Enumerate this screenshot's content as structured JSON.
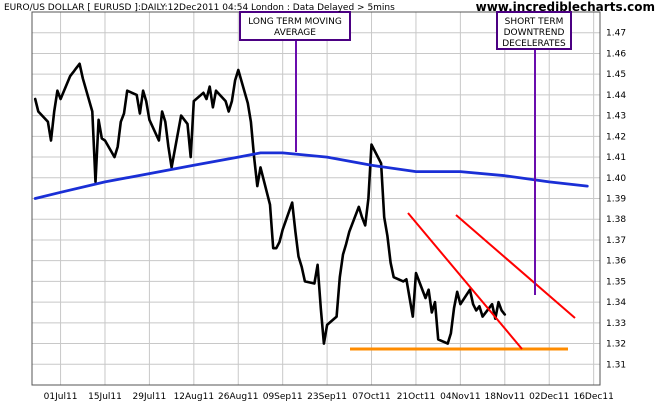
{
  "header": {
    "title": "EURO/US DOLLAR [ EURUSD ]:DAILY:12Dec2011 04:54 London : Data Delayed > 5mins",
    "brand": "www.incrediblecharts.com"
  },
  "annotations": {
    "long_term": [
      "LONG TERM MOVING",
      "AVERAGE"
    ],
    "short_term": [
      "SHORT TERM",
      "DOWNTREND",
      "DECELERATES"
    ]
  },
  "colors": {
    "price": "#000000",
    "moving_average": "#1a2fd6",
    "trendlines": "#ff0000",
    "support": "#ff8c00",
    "annotation_border": "#4b0082",
    "annotation_line": "#6a0dad",
    "grid": "#c8c8c8",
    "brand_text": "#000000"
  },
  "chart_data": {
    "type": "line",
    "x_type": "date",
    "y_axis_side": "right",
    "ylim": [
      1.3,
      1.48
    ],
    "y_ticks": [
      "1.31",
      "1.32",
      "1.33",
      "1.34",
      "1.35",
      "1.36",
      "1.37",
      "1.38",
      "1.39",
      "1.40",
      "1.41",
      "1.42",
      "1.43",
      "1.44",
      "1.45",
      "1.46",
      "1.47"
    ],
    "xlim": [
      "2011-06-22",
      "2011-12-18"
    ],
    "x_ticks": [
      {
        "label": "01Jul11",
        "date": "2011-07-01"
      },
      {
        "label": "15Jul11",
        "date": "2011-07-15"
      },
      {
        "label": "29Jul11",
        "date": "2011-07-29"
      },
      {
        "label": "12Aug11",
        "date": "2011-08-12"
      },
      {
        "label": "26Aug11",
        "date": "2011-08-26"
      },
      {
        "label": "09Sep11",
        "date": "2011-09-09"
      },
      {
        "label": "23Sep11",
        "date": "2011-09-23"
      },
      {
        "label": "07Oct11",
        "date": "2011-10-07"
      },
      {
        "label": "21Oct11",
        "date": "2011-10-21"
      },
      {
        "label": "04Nov11",
        "date": "2011-11-04"
      },
      {
        "label": "18Nov11",
        "date": "2011-11-18"
      },
      {
        "label": "02Dec11",
        "date": "2011-12-02"
      },
      {
        "label": "16Dec11",
        "date": "2011-12-16"
      }
    ],
    "grid": true,
    "series": [
      {
        "style": "price",
        "points": [
          [
            "2011-06-23",
            1.438
          ],
          [
            "2011-06-24",
            1.432
          ],
          [
            "2011-06-27",
            1.427
          ],
          [
            "2011-06-28",
            1.418
          ],
          [
            "2011-06-29",
            1.432
          ],
          [
            "2011-06-30",
            1.442
          ],
          [
            "2011-07-01",
            1.438
          ],
          [
            "2011-07-04",
            1.449
          ],
          [
            "2011-07-05",
            1.451
          ],
          [
            "2011-07-06",
            1.453
          ],
          [
            "2011-07-07",
            1.455
          ],
          [
            "2011-07-08",
            1.448
          ],
          [
            "2011-07-11",
            1.432
          ],
          [
            "2011-07-12",
            1.398
          ],
          [
            "2011-07-13",
            1.428
          ],
          [
            "2011-07-14",
            1.419
          ],
          [
            "2011-07-15",
            1.418
          ],
          [
            "2011-07-18",
            1.41
          ],
          [
            "2011-07-19",
            1.415
          ],
          [
            "2011-07-20",
            1.427
          ],
          [
            "2011-07-21",
            1.431
          ],
          [
            "2011-07-22",
            1.442
          ],
          [
            "2011-07-25",
            1.44
          ],
          [
            "2011-07-26",
            1.431
          ],
          [
            "2011-07-27",
            1.442
          ],
          [
            "2011-07-28",
            1.437
          ],
          [
            "2011-07-29",
            1.428
          ],
          [
            "2011-08-01",
            1.418
          ],
          [
            "2011-08-02",
            1.432
          ],
          [
            "2011-08-03",
            1.427
          ],
          [
            "2011-08-04",
            1.415
          ],
          [
            "2011-08-05",
            1.405
          ],
          [
            "2011-08-08",
            1.43
          ],
          [
            "2011-08-09",
            1.428
          ],
          [
            "2011-08-10",
            1.426
          ],
          [
            "2011-08-11",
            1.41
          ],
          [
            "2011-08-12",
            1.437
          ],
          [
            "2011-08-15",
            1.441
          ],
          [
            "2011-08-16",
            1.438
          ],
          [
            "2011-08-17",
            1.444
          ],
          [
            "2011-08-18",
            1.434
          ],
          [
            "2011-08-19",
            1.442
          ],
          [
            "2011-08-22",
            1.437
          ],
          [
            "2011-08-23",
            1.432
          ],
          [
            "2011-08-24",
            1.437
          ],
          [
            "2011-08-25",
            1.447
          ],
          [
            "2011-08-26",
            1.452
          ],
          [
            "2011-08-29",
            1.436
          ],
          [
            "2011-08-30",
            1.427
          ],
          [
            "2011-08-31",
            1.41
          ],
          [
            "2011-09-01",
            1.396
          ],
          [
            "2011-09-02",
            1.405
          ],
          [
            "2011-09-05",
            1.387
          ],
          [
            "2011-09-06",
            1.366
          ],
          [
            "2011-09-07",
            1.366
          ],
          [
            "2011-09-08",
            1.369
          ],
          [
            "2011-09-09",
            1.375
          ],
          [
            "2011-09-12",
            1.388
          ],
          [
            "2011-09-13",
            1.374
          ],
          [
            "2011-09-14",
            1.362
          ],
          [
            "2011-09-15",
            1.357
          ],
          [
            "2011-09-16",
            1.35
          ],
          [
            "2011-09-19",
            1.349
          ],
          [
            "2011-09-20",
            1.358
          ],
          [
            "2011-09-21",
            1.337
          ],
          [
            "2011-09-22",
            1.32
          ],
          [
            "2011-09-23",
            1.329
          ],
          [
            "2011-09-26",
            1.333
          ],
          [
            "2011-09-27",
            1.352
          ],
          [
            "2011-09-28",
            1.363
          ],
          [
            "2011-09-29",
            1.368
          ],
          [
            "2011-09-30",
            1.374
          ],
          [
            "2011-10-03",
            1.386
          ],
          [
            "2011-10-04",
            1.381
          ],
          [
            "2011-10-05",
            1.377
          ],
          [
            "2011-10-06",
            1.39
          ],
          [
            "2011-10-07",
            1.416
          ],
          [
            "2011-10-10",
            1.407
          ],
          [
            "2011-10-11",
            1.381
          ],
          [
            "2011-10-12",
            1.372
          ],
          [
            "2011-10-13",
            1.359
          ],
          [
            "2011-10-14",
            1.352
          ],
          [
            "2011-10-17",
            1.35
          ],
          [
            "2011-10-18",
            1.351
          ],
          [
            "2011-10-19",
            1.342
          ],
          [
            "2011-10-20",
            1.333
          ],
          [
            "2011-10-21",
            1.354
          ],
          [
            "2011-10-24",
            1.342
          ],
          [
            "2011-10-25",
            1.346
          ],
          [
            "2011-10-26",
            1.335
          ],
          [
            "2011-10-27",
            1.34
          ],
          [
            "2011-10-28",
            1.322
          ],
          [
            "2011-10-31",
            1.32
          ],
          [
            "2011-11-01",
            1.325
          ],
          [
            "2011-11-02",
            1.337
          ],
          [
            "2011-11-03",
            1.345
          ],
          [
            "2011-11-04",
            1.339
          ],
          [
            "2011-11-07",
            1.346
          ],
          [
            "2011-11-08",
            1.339
          ],
          [
            "2011-11-09",
            1.336
          ],
          [
            "2011-11-10",
            1.338
          ],
          [
            "2011-11-11",
            1.333
          ],
          [
            "2011-11-14",
            1.339
          ],
          [
            "2011-11-15",
            1.332
          ],
          [
            "2011-11-16",
            1.34
          ],
          [
            "2011-11-17",
            1.336
          ],
          [
            "2011-11-18",
            1.334
          ]
        ]
      },
      {
        "style": "moving_average",
        "points": [
          [
            "2011-06-23",
            1.39
          ],
          [
            "2011-07-01",
            1.393
          ],
          [
            "2011-07-15",
            1.398
          ],
          [
            "2011-07-29",
            1.402
          ],
          [
            "2011-08-12",
            1.406
          ],
          [
            "2011-08-26",
            1.41
          ],
          [
            "2011-09-02",
            1.412
          ],
          [
            "2011-09-09",
            1.412
          ],
          [
            "2011-09-23",
            1.41
          ],
          [
            "2011-10-07",
            1.406
          ],
          [
            "2011-10-21",
            1.403
          ],
          [
            "2011-11-04",
            1.403
          ],
          [
            "2011-11-18",
            1.401
          ],
          [
            "2011-12-02",
            1.398
          ],
          [
            "2011-12-14",
            1.396
          ]
        ]
      }
    ]
  }
}
